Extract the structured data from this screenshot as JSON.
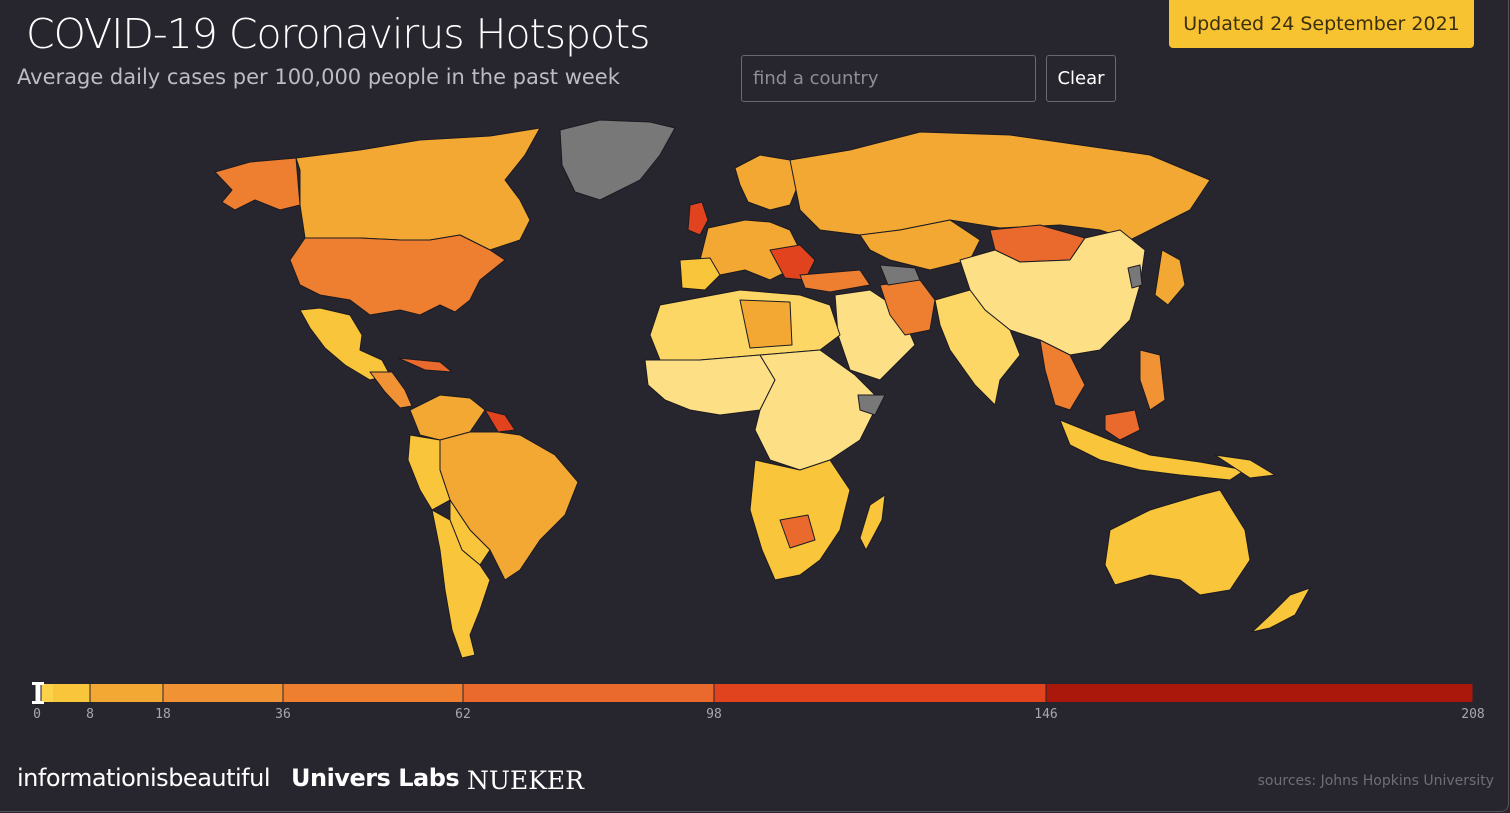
{
  "header": {
    "title": "COVID-19 Coronavirus Hotspots",
    "subtitle": "Average daily cases per 100,000 people in the past week",
    "updated": "Updated 24 September 2021"
  },
  "search": {
    "placeholder": "find a country",
    "value": "",
    "clear_label": "Clear"
  },
  "colors": {
    "background": "#27252e",
    "border": "#1c1b21",
    "no_data": "#787878",
    "accent": "#f7c331"
  },
  "legend": {
    "ticks": [
      "0",
      "8",
      "18",
      "36",
      "62",
      "98",
      "146",
      "208"
    ],
    "bins": [
      {
        "from": 0,
        "to": 8,
        "color": "#f9c53b"
      },
      {
        "from": 8,
        "to": 18,
        "color": "#f3a833"
      },
      {
        "from": 18,
        "to": 36,
        "color": "#f19335"
      },
      {
        "from": 36,
        "to": 62,
        "color": "#ee7f30"
      },
      {
        "from": 62,
        "to": 98,
        "color": "#ea692d"
      },
      {
        "from": 98,
        "to": 146,
        "color": "#e1431e"
      },
      {
        "from": 146,
        "to": 208,
        "color": "#a9180a"
      }
    ],
    "slider_value": 0
  },
  "footer": {
    "brand1": "informationisbeautiful",
    "brand2": "Univers Labs",
    "brand3": "NUEKER",
    "sources": "sources: Johns Hopkins University"
  }
}
